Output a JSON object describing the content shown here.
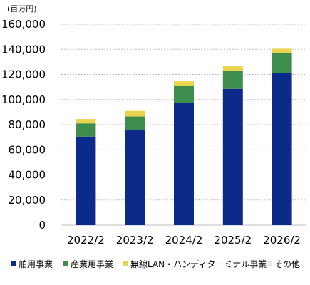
{
  "chart_data": {
    "type": "bar",
    "stacked": true,
    "title": "",
    "unit_label": "(百万円)",
    "xlabel": "",
    "ylabel": "",
    "categories": [
      "2022/2",
      "2023/2",
      "2024/2",
      "2025/2",
      "2026/2"
    ],
    "ylim": [
      0,
      160000
    ],
    "yticks": [
      0,
      20000,
      40000,
      60000,
      80000,
      100000,
      120000,
      140000,
      160000
    ],
    "ytick_labels": [
      "0",
      "20,000",
      "40,000",
      "60,000",
      "80,000",
      "100,000",
      "120,000",
      "140,000",
      "160,000"
    ],
    "grid": true,
    "legend_position": "bottom",
    "series": [
      {
        "name": "舶用事業",
        "color": "#0b2a8a",
        "values": [
          70500,
          75500,
          97500,
          108500,
          121000
        ]
      },
      {
        "name": "産業用事業",
        "color": "#3e8d4c",
        "values": [
          10500,
          11000,
          13500,
          14500,
          16000
        ]
      },
      {
        "name": "無線LAN・ハンディターミナル事業",
        "color": "#e8d44f",
        "values": [
          3500,
          4500,
          3500,
          4000,
          3500
        ]
      },
      {
        "name": "その他",
        "color": "#ece9dc",
        "values": [
          0,
          0,
          0,
          0,
          0
        ]
      }
    ]
  }
}
